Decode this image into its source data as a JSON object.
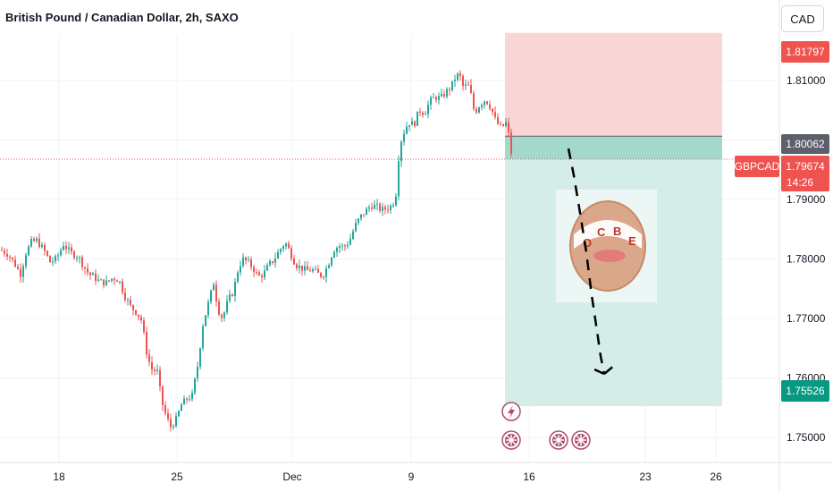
{
  "header": {
    "title": "British Pound / Canadian Dollar, 2h, SAXO",
    "currency_button": "CAD"
  },
  "price_axis": {
    "ticks": [
      {
        "label": "1.81000",
        "value": 1.81
      },
      {
        "label": "1.80000",
        "value": 1.8
      },
      {
        "label": "1.79000",
        "value": 1.79
      },
      {
        "label": "1.78000",
        "value": 1.78
      },
      {
        "label": "1.77000",
        "value": 1.77
      },
      {
        "label": "1.76000",
        "value": 1.76
      },
      {
        "label": "1.75000",
        "value": 1.75
      }
    ]
  },
  "time_axis": {
    "labels": [
      "18",
      "25",
      "Dec",
      "9",
      "16",
      "23",
      "26"
    ]
  },
  "badges": {
    "stop_loss": "1.81797",
    "entry": "1.80062",
    "symbol": "GBPCAD",
    "last_price": "1.79674",
    "countdown": "14:26",
    "take_profit": "1.75526"
  },
  "watermark": {
    "letters": [
      "O",
      "C",
      "B",
      "E"
    ]
  },
  "colors": {
    "bull": "#26a69a",
    "bear": "#ef5350",
    "stop_zone": "#f9d5d5",
    "target_zone": "#d5ede8",
    "entry_band": "#a5d8cc",
    "axis_text": "#131722"
  },
  "chart_data": {
    "type": "candlestick",
    "symbol": "GBPCAD",
    "timeframe": "2h",
    "ylim": [
      1.7458,
      1.8235
    ],
    "price_path": [
      [
        0,
        1.7815
      ],
      [
        8,
        1.7808
      ],
      [
        14,
        1.7795
      ],
      [
        22,
        1.7775
      ],
      [
        28,
        1.781
      ],
      [
        34,
        1.7828
      ],
      [
        40,
        1.7831
      ],
      [
        48,
        1.7815
      ],
      [
        55,
        1.7795
      ],
      [
        62,
        1.78
      ],
      [
        70,
        1.7825
      ],
      [
        78,
        1.781
      ],
      [
        86,
        1.7805
      ],
      [
        92,
        1.779
      ],
      [
        98,
        1.7775
      ],
      [
        104,
        1.777
      ],
      [
        110,
        1.7762
      ],
      [
        118,
        1.776
      ],
      [
        125,
        1.7768
      ],
      [
        132,
        1.7765
      ],
      [
        138,
        1.774
      ],
      [
        145,
        1.772
      ],
      [
        152,
        1.771
      ],
      [
        158,
        1.7695
      ],
      [
        162,
        1.765
      ],
      [
        168,
        1.7615
      ],
      [
        175,
        1.761
      ],
      [
        180,
        1.756
      ],
      [
        185,
        1.7535
      ],
      [
        190,
        1.7518
      ],
      [
        196,
        1.753
      ],
      [
        202,
        1.7555
      ],
      [
        208,
        1.7565
      ],
      [
        214,
        1.757
      ],
      [
        220,
        1.762
      ],
      [
        226,
        1.769
      ],
      [
        232,
        1.7725
      ],
      [
        238,
        1.776
      ],
      [
        243,
        1.7715
      ],
      [
        248,
        1.77
      ],
      [
        254,
        1.773
      ],
      [
        260,
        1.7745
      ],
      [
        265,
        1.778
      ],
      [
        270,
        1.78
      ],
      [
        276,
        1.7795
      ],
      [
        282,
        1.7785
      ],
      [
        288,
        1.777
      ],
      [
        294,
        1.7775
      ],
      [
        300,
        1.779
      ],
      [
        306,
        1.78
      ],
      [
        312,
        1.7815
      ],
      [
        318,
        1.7828
      ],
      [
        324,
        1.781
      ],
      [
        330,
        1.779
      ],
      [
        336,
        1.7785
      ],
      [
        342,
        1.778
      ],
      [
        348,
        1.7782
      ],
      [
        354,
        1.7775
      ],
      [
        360,
        1.7772
      ],
      [
        366,
        1.779
      ],
      [
        372,
        1.7815
      ],
      [
        378,
        1.7822
      ],
      [
        384,
        1.782
      ],
      [
        390,
        1.783
      ],
      [
        396,
        1.7855
      ],
      [
        402,
        1.787
      ],
      [
        408,
        1.788
      ],
      [
        414,
        1.789
      ],
      [
        420,
        1.7888
      ],
      [
        426,
        1.7882
      ],
      [
        432,
        1.7885
      ],
      [
        438,
        1.789
      ],
      [
        442,
        1.791
      ],
      [
        446,
        1.799
      ],
      [
        450,
        1.801
      ],
      [
        456,
        1.803
      ],
      [
        462,
        1.8025
      ],
      [
        468,
        1.805
      ],
      [
        474,
        1.8045
      ],
      [
        480,
        1.8065
      ],
      [
        486,
        1.8072
      ],
      [
        492,
        1.807
      ],
      [
        498,
        1.808
      ],
      [
        504,
        1.809
      ],
      [
        510,
        1.811
      ],
      [
        514,
        1.8105
      ],
      [
        518,
        1.8085
      ],
      [
        522,
        1.8095
      ],
      [
        526,
        1.8075
      ],
      [
        530,
        1.8045
      ],
      [
        536,
        1.806
      ],
      [
        542,
        1.8068
      ],
      [
        548,
        1.8055
      ],
      [
        554,
        1.803
      ],
      [
        560,
        1.802
      ],
      [
        566,
        1.803
      ],
      [
        572,
        1.7968
      ]
    ],
    "position": {
      "direction": "short",
      "entry": 1.80062,
      "stop": 1.81797,
      "target": 1.75526,
      "last": 1.79674
    }
  }
}
